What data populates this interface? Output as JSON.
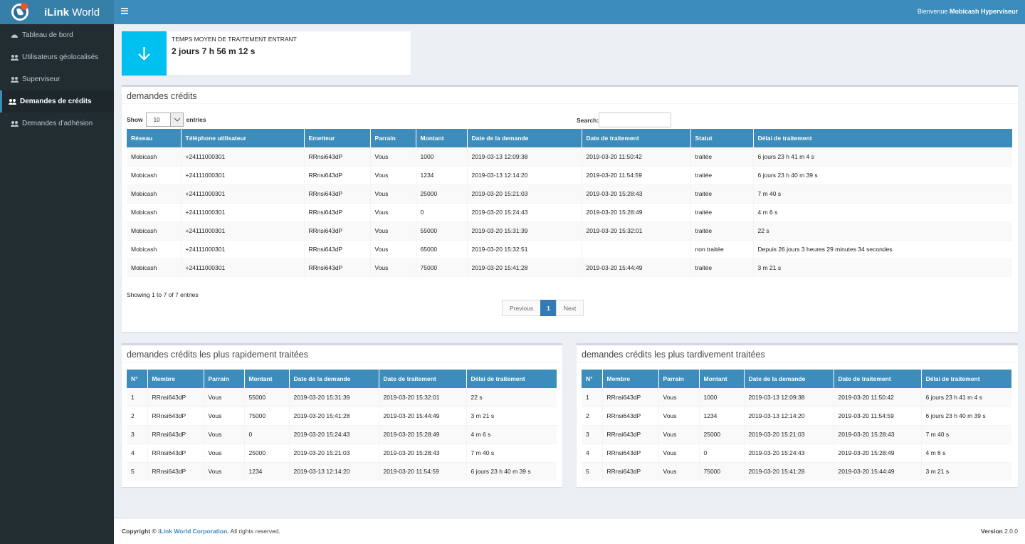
{
  "brand": {
    "name_bold": "iLink",
    "name": "World"
  },
  "header": {
    "welcome": "Bienvenue",
    "user": "Mobicash Hyperviseur"
  },
  "sidebar": {
    "items": [
      "Tableau de bord",
      "Utilisateurs géolocalisés",
      "Superviseur",
      "Demandes de crédits",
      "Demandes d'adhésion"
    ],
    "active": 3
  },
  "stat": {
    "title": "TEMPS MOYEN DE TRAITEMENT ENTRANT",
    "value": "2 jours 7 h 56 m 12 s"
  },
  "main_table": {
    "title": "demandes crédits",
    "show": "Show",
    "page_size": "10",
    "entries": "entries",
    "search": "Search:",
    "columns": [
      "Réseau",
      "Téléphone utilisateur",
      "Emetteur",
      "Parrain",
      "Montant",
      "Date de la demande",
      "Date de traitement",
      "Statut",
      "Délai de traitement"
    ],
    "rows": [
      [
        "Mobicash",
        "+24111000301",
        "RRnsi643dP",
        "Vous",
        "1000",
        "2019-03-13 12:09:38",
        "2019-03-20 11:50:42",
        "traitée",
        "6 jours 23 h 41 m 4 s"
      ],
      [
        "Mobicash",
        "+24111000301",
        "RRnsi643dP",
        "Vous",
        "1234",
        "2019-03-13 12:14:20",
        "2019-03-20 11:54:59",
        "traitée",
        "6 jours 23 h 40 m 39 s"
      ],
      [
        "Mobicash",
        "+24111000301",
        "RRnsi643dP",
        "Vous",
        "25000",
        "2019-03-20 15:21:03",
        "2019-03-20 15:28:43",
        "traitée",
        "7 m 40 s"
      ],
      [
        "Mobicash",
        "+24111000301",
        "RRnsi643dP",
        "Vous",
        "0",
        "2019-03-20 15:24:43",
        "2019-03-20 15:28:49",
        "traitée",
        "4 m 6 s"
      ],
      [
        "Mobicash",
        "+24111000301",
        "RRnsi643dP",
        "Vous",
        "55000",
        "2019-03-20 15:31:39",
        "2019-03-20 15:32:01",
        "traitée",
        "22 s"
      ],
      [
        "Mobicash",
        "+24111000301",
        "RRnsi643dP",
        "Vous",
        "65000",
        "2019-03-20 15:32:51",
        null,
        "non traitée",
        "Depuis 26 jours 3 heures 29 minutes 34 secondes"
      ],
      [
        "Mobicash",
        "+24111000301",
        "RRnsi643dP",
        "Vous",
        "75000",
        "2019-03-20 15:41:28",
        "2019-03-20 15:44:49",
        "traitée",
        "3 m 21 s"
      ]
    ],
    "info": "Showing 1 to 7 of 7 entries",
    "pagination": [
      "Previous",
      "1",
      "Next"
    ]
  },
  "fast_table": {
    "title": "demandes crédits les plus rapidement traitées",
    "columns": [
      "N°",
      "Membre",
      "Parrain",
      "Montant",
      "Date de la demande",
      "Date de traitement",
      "Délai de traitement"
    ],
    "rows": [
      [
        "1",
        "RRnsi643dP",
        "Vous",
        "55000",
        "2019-03-20 15:31:39",
        "2019-03-20 15:32:01",
        "22 s"
      ],
      [
        "2",
        "RRnsi643dP",
        "Vous",
        "75000",
        "2019-03-20 15:41:28",
        "2019-03-20 15:44:49",
        "3 m 21 s"
      ],
      [
        "3",
        "RRnsi643dP",
        "Vous",
        "0",
        "2019-03-20 15:24:43",
        "2019-03-20 15:28:49",
        "4 m 6 s"
      ],
      [
        "4",
        "RRnsi643dP",
        "Vous",
        "25000",
        "2019-03-20 15:21:03",
        "2019-03-20 15:28:43",
        "7 m 40 s"
      ],
      [
        "5",
        "RRnsi643dP",
        "Vous",
        "1234",
        "2019-03-13 12:14:20",
        "2019-03-20 11:54:59",
        "6 jours 23 h 40 m 39 s"
      ]
    ]
  },
  "slow_table": {
    "title": "demandes crédits les plus tardivement traitées",
    "columns": [
      "N°",
      "Membre",
      "Parrain",
      "Montant",
      "Date de la demande",
      "Date de traitement",
      "Délai de traitement"
    ],
    "rows": [
      [
        "1",
        "RRnsi643dP",
        "Vous",
        "1000",
        "2019-03-13 12:09:38",
        "2019-03-20 11:50:42",
        "6 jours 23 h 41 m 4 s"
      ],
      [
        "2",
        "RRnsi643dP",
        "Vous",
        "1234",
        "2019-03-13 12:14:20",
        "2019-03-20 11:54:59",
        "6 jours 23 h 40 m 39 s"
      ],
      [
        "3",
        "RRnsi643dP",
        "Vous",
        "25000",
        "2019-03-20 15:21:03",
        "2019-03-20 15:28:43",
        "7 m 40 s"
      ],
      [
        "4",
        "RRnsi643dP",
        "Vous",
        "0",
        "2019-03-20 15:24:43",
        "2019-03-20 15:28:49",
        "4 m 6 s"
      ],
      [
        "5",
        "RRnsi643dP",
        "Vous",
        "75000",
        "2019-03-20 15:41:28",
        "2019-03-20 15:44:49",
        "3 m 21 s"
      ]
    ]
  },
  "footer": {
    "copyright": "Copyright ©",
    "company": "iLink World Corporation.",
    "rights": "All rights reserved.",
    "version_label": "Version",
    "version": "2.0.0"
  }
}
